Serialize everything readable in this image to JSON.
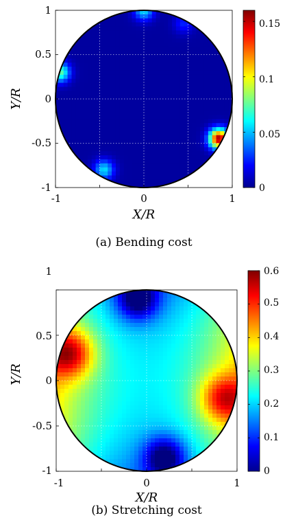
{
  "chart_data": [
    {
      "type": "heatmap",
      "panel": "a",
      "caption": "(a) Bending cost",
      "xlabel": "X/R",
      "ylabel": "Y/R",
      "xlim": [
        -1,
        1
      ],
      "ylim": [
        -1,
        1
      ],
      "x_ticks": [
        "-1",
        "0",
        "1"
      ],
      "y_ticks": [
        "1",
        "0.5",
        "0",
        "-0.5",
        "-1"
      ],
      "colorbar": {
        "colormap": "jet",
        "range": [
          0,
          0.16
        ],
        "ticks": [
          "0.15",
          "0.1",
          "0.05",
          "0"
        ]
      },
      "domain_shape": "unit disk",
      "grid": true,
      "hotspots": [
        {
          "x": -0.95,
          "y": 0.3,
          "value": 0.07
        },
        {
          "x": 0.85,
          "y": -0.45,
          "value": 0.15
        },
        {
          "x": 0.0,
          "y": 1.0,
          "value": 0.05
        },
        {
          "x": -0.45,
          "y": -0.8,
          "value": 0.05
        },
        {
          "x": 0.45,
          "y": 0.85,
          "value": 0.02
        }
      ],
      "background_value": 0.005
    },
    {
      "type": "heatmap",
      "panel": "b",
      "caption": "(b) Stretching cost",
      "xlabel": "X/R",
      "ylabel": "Y/R",
      "xlim": [
        -1,
        1
      ],
      "ylim": [
        -1,
        1
      ],
      "x_ticks": [
        "-1",
        "0",
        "1"
      ],
      "y_ticks": [
        "1",
        "0.5",
        "0",
        "-0.5",
        "-1"
      ],
      "colorbar": {
        "colormap": "jet",
        "range": [
          0,
          0.6
        ],
        "ticks": [
          "0.6",
          "0.5",
          "0.4",
          "0.3",
          "0.2",
          "0.1",
          "0"
        ]
      },
      "domain_shape": "unit disk",
      "grid": true,
      "maxima": [
        {
          "x": -0.85,
          "y": 0.3,
          "value": 0.6
        },
        {
          "x": 0.85,
          "y": -0.2,
          "value": 0.57
        }
      ],
      "minima": [
        {
          "x": -0.1,
          "y": 0.9,
          "value": 0.02
        },
        {
          "x": 0.2,
          "y": -0.85,
          "value": 0.02
        }
      ]
    }
  ]
}
